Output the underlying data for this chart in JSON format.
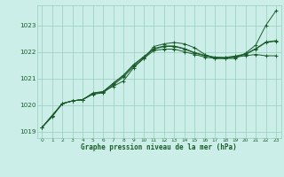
{
  "title": "Graphe pression niveau de la mer (hPa)",
  "bg_color": "#cceee8",
  "grid_color": "#99ccbb",
  "line_color": "#1a5c2a",
  "xlim": [
    -0.5,
    23.5
  ],
  "ylim": [
    1018.75,
    1023.75
  ],
  "yticks": [
    1019,
    1020,
    1021,
    1022,
    1023
  ],
  "xticks": [
    0,
    1,
    2,
    3,
    4,
    5,
    6,
    7,
    8,
    9,
    10,
    11,
    12,
    13,
    14,
    15,
    16,
    17,
    18,
    19,
    20,
    21,
    22,
    23
  ],
  "s1": [
    1019.15,
    1019.55,
    1020.05,
    1020.15,
    1020.2,
    1020.45,
    1020.5,
    1020.7,
    1020.9,
    1021.4,
    1021.75,
    1022.2,
    1022.3,
    1022.35,
    1022.3,
    1022.15,
    1021.9,
    1021.75,
    1021.75,
    1021.75,
    1021.95,
    1022.25,
    1023.0,
    1023.55
  ],
  "s2": [
    1019.15,
    1019.6,
    1020.05,
    1020.15,
    1020.2,
    1020.4,
    1020.45,
    1020.75,
    1021.05,
    1021.45,
    1021.75,
    1022.05,
    1022.1,
    1022.1,
    1022.0,
    1021.9,
    1021.8,
    1021.75,
    1021.75,
    1021.8,
    1021.85,
    1021.9,
    1021.85,
    1021.85
  ],
  "s3": [
    1019.15,
    1019.6,
    1020.05,
    1020.15,
    1020.2,
    1020.42,
    1020.48,
    1020.8,
    1021.1,
    1021.5,
    1021.8,
    1022.1,
    1022.2,
    1022.2,
    1022.1,
    1021.95,
    1021.85,
    1021.78,
    1021.77,
    1021.82,
    1021.9,
    1022.1,
    1022.35,
    1022.4
  ],
  "s4": [
    1019.15,
    1019.6,
    1020.05,
    1020.15,
    1020.2,
    1020.42,
    1020.5,
    1020.82,
    1021.12,
    1021.52,
    1021.82,
    1022.12,
    1022.22,
    1022.22,
    1022.12,
    1021.97,
    1021.87,
    1021.8,
    1021.79,
    1021.84,
    1021.92,
    1022.12,
    1022.37,
    1022.42
  ]
}
